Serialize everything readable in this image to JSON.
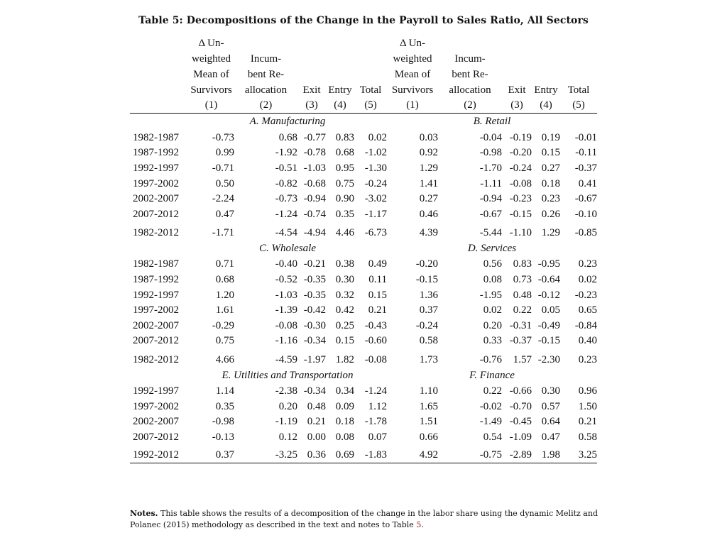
{
  "title": "Table 5: Decompositions of the Change in the Payroll to Sales Ratio, All Sectors",
  "headers": {
    "line1": [
      "",
      "Δ Un-",
      "",
      "",
      "",
      "",
      "Δ Un-",
      "",
      "",
      "",
      ""
    ],
    "line2": [
      "",
      "weighted",
      "Incum-",
      "",
      "",
      "",
      "weighted",
      "Incum-",
      "",
      "",
      ""
    ],
    "line3": [
      "",
      "Mean of",
      "bent Re-",
      "",
      "",
      "",
      "Mean of",
      "bent Re-",
      "",
      "",
      ""
    ],
    "line4": [
      "",
      "Survivors",
      "allocation",
      "Exit",
      "Entry",
      "Total",
      "Survivors",
      "allocation",
      "Exit",
      "Entry",
      "Total"
    ],
    "line5": [
      "",
      "(1)",
      "(2)",
      "(3)",
      "(4)",
      "(5)",
      "(1)",
      "(2)",
      "(3)",
      "(4)",
      "(5)"
    ]
  },
  "panels": [
    {
      "left_title": "A. Manufacturing",
      "right_title": "B. Retail",
      "rows": [
        [
          "1982-1987",
          "-0.73",
          "0.68",
          "-0.77",
          "0.83",
          "0.02",
          "0.03",
          "-0.04",
          "-0.19",
          "0.19",
          "-0.01"
        ],
        [
          "1987-1992",
          "0.99",
          "-1.92",
          "-0.78",
          "0.68",
          "-1.02",
          "0.92",
          "-0.98",
          "-0.20",
          "0.15",
          "-0.11"
        ],
        [
          "1992-1997",
          "-0.71",
          "-0.51",
          "-1.03",
          "0.95",
          "-1.30",
          "1.29",
          "-1.70",
          "-0.24",
          "0.27",
          "-0.37"
        ],
        [
          "1997-2002",
          "0.50",
          "-0.82",
          "-0.68",
          "0.75",
          "-0.24",
          "1.41",
          "-1.11",
          "-0.08",
          "0.18",
          "0.41"
        ],
        [
          "2002-2007",
          "-2.24",
          "-0.73",
          "-0.94",
          "0.90",
          "-3.02",
          "0.27",
          "-0.94",
          "-0.23",
          "0.23",
          "-0.67"
        ],
        [
          "2007-2012",
          "0.47",
          "-1.24",
          "-0.74",
          "0.35",
          "-1.17",
          "0.46",
          "-0.67",
          "-0.15",
          "0.26",
          "-0.10"
        ]
      ],
      "total": [
        "1982-2012",
        "-1.71",
        "-4.54",
        "-4.94",
        "4.46",
        "-6.73",
        "4.39",
        "-5.44",
        "-1.10",
        "1.29",
        "-0.85"
      ]
    },
    {
      "left_title": "C. Wholesale",
      "right_title": "D. Services",
      "rows": [
        [
          "1982-1987",
          "0.71",
          "-0.40",
          "-0.21",
          "0.38",
          "0.49",
          "-0.20",
          "0.56",
          "0.83",
          "-0.95",
          "0.23"
        ],
        [
          "1987-1992",
          "0.68",
          "-0.52",
          "-0.35",
          "0.30",
          "0.11",
          "-0.15",
          "0.08",
          "0.73",
          "-0.64",
          "0.02"
        ],
        [
          "1992-1997",
          "1.20",
          "-1.03",
          "-0.35",
          "0.32",
          "0.15",
          "1.36",
          "-1.95",
          "0.48",
          "-0.12",
          "-0.23"
        ],
        [
          "1997-2002",
          "1.61",
          "-1.39",
          "-0.42",
          "0.42",
          "0.21",
          "0.37",
          "0.02",
          "0.22",
          "0.05",
          "0.65"
        ],
        [
          "2002-2007",
          "-0.29",
          "-0.08",
          "-0.30",
          "0.25",
          "-0.43",
          "-0.24",
          "0.20",
          "-0.31",
          "-0.49",
          "-0.84"
        ],
        [
          "2007-2012",
          "0.75",
          "-1.16",
          "-0.34",
          "0.15",
          "-0.60",
          "0.58",
          "0.33",
          "-0.37",
          "-0.15",
          "0.40"
        ]
      ],
      "total": [
        "1982-2012",
        "4.66",
        "-4.59",
        "-1.97",
        "1.82",
        "-0.08",
        "1.73",
        "-0.76",
        "1.57",
        "-2.30",
        "0.23"
      ]
    },
    {
      "left_title": "E. Utilities and Transportation",
      "right_title": "F. Finance",
      "rows": [
        [
          "1992-1997",
          "1.14",
          "-2.38",
          "-0.34",
          "0.34",
          "-1.24",
          "1.10",
          "0.22",
          "-0.66",
          "0.30",
          "0.96"
        ],
        [
          "1997-2002",
          "0.35",
          "0.20",
          "0.48",
          "0.09",
          "1.12",
          "1.65",
          "-0.02",
          "-0.70",
          "0.57",
          "1.50"
        ],
        [
          "2002-2007",
          "-0.98",
          "-1.19",
          "0.21",
          "0.18",
          "-1.78",
          "1.51",
          "-1.49",
          "-0.45",
          "0.64",
          "0.21"
        ],
        [
          "2007-2012",
          "-0.13",
          "0.12",
          "0.00",
          "0.08",
          "0.07",
          "0.66",
          "0.54",
          "-1.09",
          "0.47",
          "0.58"
        ]
      ],
      "total": [
        "1992-2012",
        "0.37",
        "-3.25",
        "0.36",
        "0.69",
        "-1.83",
        "4.92",
        "-0.75",
        "-2.89",
        "1.98",
        "3.25"
      ]
    }
  ],
  "notes": {
    "label": "Notes.",
    "text": "This table shows the results of a decomposition of the change in the labor share using the dynamic Melitz and Polanec (2015) methodology as described in the text and notes to Table",
    "ref": "5",
    "end": "."
  }
}
